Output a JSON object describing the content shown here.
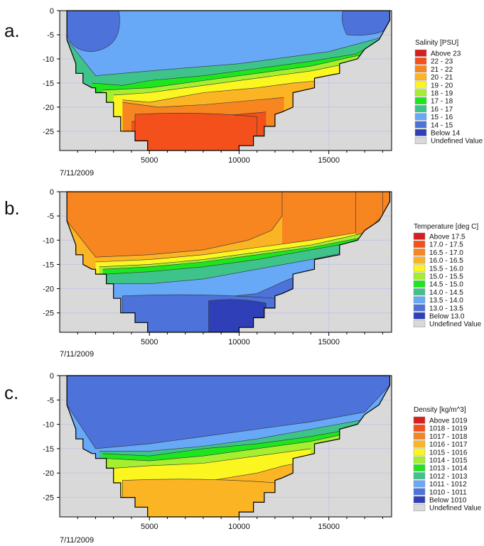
{
  "chart_data": [
    {
      "type": "heatmap",
      "panel_label": "a.",
      "date_label": "7/11/2009",
      "xlim": [
        0,
        18500
      ],
      "ylim": [
        -29,
        0
      ],
      "x_ticks": [
        5000,
        10000,
        15000
      ],
      "y_ticks": [
        0,
        -5,
        -10,
        -15,
        -20,
        -25
      ],
      "legend_title": "Salinity [PSU]",
      "legend": [
        {
          "label": "Above 23",
          "color": "#d42020"
        },
        {
          "label": "22 - 23",
          "color": "#f4501c"
        },
        {
          "label": "21 - 22",
          "color": "#f78520"
        },
        {
          "label": "20 - 21",
          "color": "#fbb524"
        },
        {
          "label": "19 - 20",
          "color": "#fbf520"
        },
        {
          "label": "18 - 19",
          "color": "#a6ef30"
        },
        {
          "label": "17 - 18",
          "color": "#1ee61e"
        },
        {
          "label": "16 - 17",
          "color": "#3ec48a"
        },
        {
          "label": "15 - 16",
          "color": "#67a8f7"
        },
        {
          "label": "14 - 15",
          "color": "#4d72d9"
        },
        {
          "label": "Below 14",
          "color": "#2f3fb8"
        },
        {
          "label": "Undefined Value",
          "color": "#d9d9d9"
        }
      ],
      "layers": [
        {
          "range": "15 - 16",
          "color": "#67a8f7",
          "top": [
            [
              400,
              0
            ],
            [
              18400,
              0
            ]
          ],
          "bottom": [
            [
              400,
              -6
            ],
            [
              2000,
              -13.5
            ],
            [
              5000,
              -12.5
            ],
            [
              10000,
              -11
            ],
            [
              15000,
              -8.5
            ],
            [
              18000,
              -5.5
            ],
            [
              18400,
              -2
            ]
          ]
        },
        {
          "range": "16 - 17",
          "color": "#3ec48a",
          "bottom": [
            [
              1800,
              -15
            ],
            [
              3500,
              -15.5
            ],
            [
              5000,
              -14.5
            ],
            [
              8000,
              -13.5
            ],
            [
              11000,
              -12
            ],
            [
              14000,
              -10.5
            ],
            [
              16500,
              -9
            ],
            [
              18000,
              -6
            ]
          ]
        },
        {
          "range": "17 - 18",
          "color": "#1ee61e",
          "bottom": [
            [
              2400,
              -16.5
            ],
            [
              5000,
              -16
            ],
            [
              8000,
              -14.5
            ],
            [
              11000,
              -13
            ],
            [
              14000,
              -11.5
            ],
            [
              17000,
              -9
            ]
          ]
        },
        {
          "range": "18 - 19",
          "color": "#a6ef30",
          "bottom": [
            [
              3000,
              -17.5
            ],
            [
              5000,
              -17
            ],
            [
              8000,
              -15.5
            ],
            [
              11000,
              -14
            ],
            [
              14000,
              -12.5
            ],
            [
              16000,
              -11
            ]
          ]
        },
        {
          "range": "19 - 20",
          "color": "#fbf520",
          "bottom": [
            [
              3500,
              -18.5
            ],
            [
              5000,
              -19
            ],
            [
              8000,
              -17
            ],
            [
              11000,
              -16
            ],
            [
              13000,
              -15
            ],
            [
              14500,
              -14.5
            ]
          ]
        },
        {
          "range": "20 - 21",
          "color": "#fbb524",
          "bottom": [
            [
              3500,
              -19
            ],
            [
              5500,
              -20
            ],
            [
              8000,
              -19.5
            ],
            [
              12500,
              -18
            ]
          ]
        },
        {
          "range": "21 - 22",
          "color": "#f78520",
          "bottom": [
            [
              4000,
              -23
            ],
            [
              6000,
              -22.5
            ],
            [
              8000,
              -22
            ],
            [
              10000,
              -21.5
            ],
            [
              11500,
              -21
            ]
          ]
        },
        {
          "range": "22 - 23",
          "color": "#f4501c",
          "region": "core",
          "x_span": [
            4200,
            11000
          ],
          "y_top": -22
        }
      ],
      "features": [
        {
          "range": "14 - 15",
          "color": "#4d72d9",
          "location": "upper-left",
          "x_span": [
            400,
            3300
          ],
          "y_span": [
            0,
            -8.5
          ]
        },
        {
          "range": "14 - 15",
          "color": "#4d72d9",
          "location": "upper-right",
          "x_span": [
            15800,
            18400
          ],
          "y_span": [
            0,
            -5.5
          ]
        }
      ]
    },
    {
      "type": "heatmap",
      "panel_label": "b.",
      "date_label": "7/11/2009",
      "xlim": [
        0,
        18500
      ],
      "ylim": [
        -29,
        0
      ],
      "x_ticks": [
        5000,
        10000,
        15000
      ],
      "y_ticks": [
        0,
        -5,
        -10,
        -15,
        -20,
        -25
      ],
      "legend_title": "Temperature [deg C]",
      "legend": [
        {
          "label": "Above 17.5",
          "color": "#d42020"
        },
        {
          "label": "17.0 - 17.5",
          "color": "#f4501c"
        },
        {
          "label": "16.5 - 17.0",
          "color": "#f78520"
        },
        {
          "label": "16.0 - 16.5",
          "color": "#fbb524"
        },
        {
          "label": "15.5 - 16.0",
          "color": "#fbf520"
        },
        {
          "label": "15.0 - 15.5",
          "color": "#a6ef30"
        },
        {
          "label": "14.5 - 15.0",
          "color": "#1ee61e"
        },
        {
          "label": "14.0 - 14.5",
          "color": "#3ec48a"
        },
        {
          "label": "13.5 - 14.0",
          "color": "#67a8f7"
        },
        {
          "label": "13.0 - 13.5",
          "color": "#4d72d9"
        },
        {
          "label": "Below 13.0",
          "color": "#2f3fb8"
        },
        {
          "label": "Undefined Value",
          "color": "#d9d9d9"
        }
      ],
      "layers": [
        {
          "range": "16.5 - 17.0",
          "color": "#f78520",
          "bottom": [
            [
              400,
              -6
            ],
            [
              2000,
              -13.5
            ],
            [
              5000,
              -13
            ],
            [
              8000,
              -12
            ],
            [
              10500,
              -10
            ],
            [
              11800,
              -8
            ],
            [
              12400,
              -5
            ],
            [
              12400,
              0
            ]
          ]
        },
        {
          "range": "16.0 - 16.5",
          "color": "#fbb524",
          "bottom": [
            [
              2000,
              -14.5
            ],
            [
              5000,
              -14
            ],
            [
              8000,
              -13
            ],
            [
              11000,
              -11.5
            ],
            [
              14000,
              -10
            ],
            [
              16500,
              -8.5
            ],
            [
              16500,
              0
            ]
          ]
        },
        {
          "range": "15.5 - 16.0",
          "color": "#fbf520",
          "bottom": [
            [
              2200,
              -15.5
            ],
            [
              5000,
              -15
            ],
            [
              8000,
              -14
            ],
            [
              11000,
              -12.5
            ],
            [
              14000,
              -11
            ],
            [
              17000,
              -8.5
            ],
            [
              18000,
              -5
            ],
            [
              18000,
              0
            ]
          ]
        },
        {
          "range": "15.0 - 15.5",
          "color": "#a6ef30",
          "bottom": [
            [
              2400,
              -16
            ],
            [
              5000,
              -15.5
            ],
            [
              8000,
              -14.5
            ],
            [
              11000,
              -13
            ],
            [
              14000,
              -11.5
            ],
            [
              17500,
              -9
            ],
            [
              18400,
              -2
            ]
          ]
        },
        {
          "range": "14.5 - 15.0",
          "color": "#1ee61e",
          "bottom": [
            [
              2600,
              -17
            ],
            [
              5000,
              -16.5
            ],
            [
              8000,
              -15.5
            ],
            [
              11000,
              -14
            ],
            [
              14000,
              -12
            ],
            [
              17000,
              -10
            ]
          ]
        },
        {
          "range": "14.0 - 14.5",
          "color": "#3ec48a",
          "bottom": [
            [
              3000,
              -19
            ],
            [
              5000,
              -19
            ],
            [
              8000,
              -18
            ],
            [
              11000,
              -16
            ],
            [
              14000,
              -14
            ],
            [
              16000,
              -12.5
            ]
          ]
        },
        {
          "range": "13.5 - 14.0",
          "color": "#67a8f7",
          "bottom": [
            [
              3500,
              -22
            ],
            [
              6000,
              -22.5
            ],
            [
              8500,
              -22
            ],
            [
              11000,
              -21
            ],
            [
              12500,
              -18.5
            ],
            [
              13500,
              -17
            ]
          ]
        },
        {
          "range": "13.0 - 13.5",
          "color": "#4d72d9",
          "region": "deep",
          "x_span": [
            3500,
            12000
          ],
          "y_top": -22
        },
        {
          "range": "Below 13.0",
          "color": "#2f3fb8",
          "region": "core",
          "x_span": [
            8300,
            11500
          ],
          "y_top": -23
        }
      ]
    },
    {
      "type": "heatmap",
      "panel_label": "c.",
      "date_label": "7/11/2009",
      "xlim": [
        0,
        18500
      ],
      "ylim": [
        -29,
        0
      ],
      "x_ticks": [
        5000,
        10000,
        15000
      ],
      "y_ticks": [
        0,
        -5,
        -10,
        -15,
        -20,
        -25
      ],
      "legend_title": "Density [kg/m^3]",
      "legend": [
        {
          "label": "Above 1019",
          "color": "#d42020"
        },
        {
          "label": "1018 - 1019",
          "color": "#f4501c"
        },
        {
          "label": "1017 - 1018",
          "color": "#f78520"
        },
        {
          "label": "1016 - 1017",
          "color": "#fbb524"
        },
        {
          "label": "1015 - 1016",
          "color": "#fbf520"
        },
        {
          "label": "1014 - 1015",
          "color": "#a6ef30"
        },
        {
          "label": "1013 - 1014",
          "color": "#1ee61e"
        },
        {
          "label": "1012 - 1013",
          "color": "#3ec48a"
        },
        {
          "label": "1011 - 1012",
          "color": "#67a8f7"
        },
        {
          "label": "1010 - 1011",
          "color": "#4d72d9"
        },
        {
          "label": "Below 1010",
          "color": "#2f3fb8"
        },
        {
          "label": "Undefined Value",
          "color": "#d9d9d9"
        }
      ],
      "layers": [
        {
          "range": "1010 - 1011",
          "color": "#4d72d9",
          "bottom": [
            [
              400,
              -6
            ],
            [
              2000,
              -15
            ],
            [
              5000,
              -14
            ],
            [
              8000,
              -12.5
            ],
            [
              11000,
              -11
            ],
            [
              14000,
              -9.5
            ],
            [
              17000,
              -7.5
            ],
            [
              18400,
              -2
            ]
          ]
        },
        {
          "range": "1011 - 1012",
          "color": "#67a8f7",
          "bottom": [
            [
              2200,
              -15.5
            ],
            [
              5000,
              -15.5
            ],
            [
              8000,
              -14.5
            ],
            [
              11000,
              -13
            ],
            [
              14000,
              -11
            ],
            [
              17000,
              -9
            ],
            [
              18000,
              -6.5
            ]
          ]
        },
        {
          "range": "1012 - 1013",
          "color": "#3ec48a",
          "bottom": [
            [
              2400,
              -16
            ],
            [
              5000,
              -16.5
            ],
            [
              8000,
              -15
            ],
            [
              11000,
              -14
            ],
            [
              14000,
              -12.5
            ],
            [
              17000,
              -10.5
            ]
          ]
        },
        {
          "range": "1013 - 1014",
          "color": "#1ee61e",
          "bottom": [
            [
              2600,
              -17
            ],
            [
              5000,
              -17.5
            ],
            [
              8000,
              -16.5
            ],
            [
              11000,
              -15
            ],
            [
              14000,
              -13.5
            ],
            [
              16500,
              -11.5
            ]
          ]
        },
        {
          "range": "1014 - 1015",
          "color": "#a6ef30",
          "bottom": [
            [
              3000,
              -19
            ],
            [
              5000,
              -18.5
            ],
            [
              8000,
              -18
            ],
            [
              11000,
              -16.5
            ],
            [
              14000,
              -15
            ]
          ]
        },
        {
          "range": "1015 - 1016",
          "color": "#fbf520",
          "bottom": [
            [
              3500,
              -22
            ],
            [
              6000,
              -22
            ],
            [
              8500,
              -21.5
            ],
            [
              11000,
              -20
            ],
            [
              12500,
              -18.5
            ],
            [
              13200,
              -18
            ]
          ]
        },
        {
          "range": "1016 - 1017",
          "color": "#fbb524",
          "region": "deep",
          "x_span": [
            3500,
            12000
          ],
          "y_top": -22
        }
      ]
    }
  ]
}
